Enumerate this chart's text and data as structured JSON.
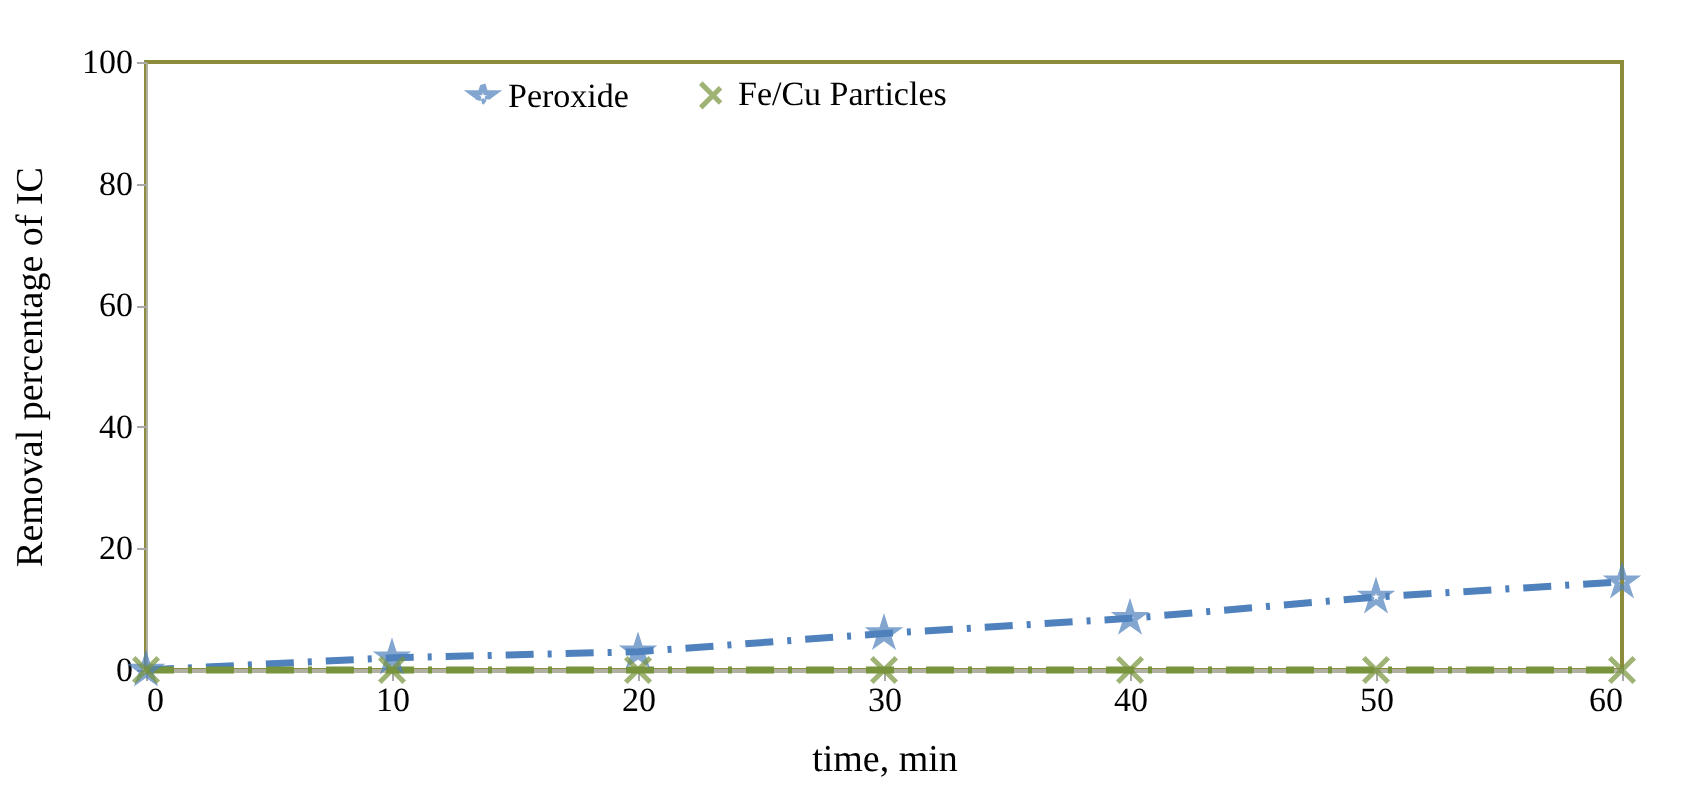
{
  "chart_data": {
    "type": "line",
    "xlabel": "time, min",
    "ylabel": "Removal percentage of IC",
    "x": [
      0,
      10,
      20,
      30,
      40,
      50,
      60
    ],
    "series": [
      {
        "name": "Peroxide",
        "color": "#4f81bd",
        "values": [
          0,
          2,
          3,
          6,
          8.5,
          12,
          14.5
        ],
        "marker": "star",
        "line_style": "dashed"
      },
      {
        "name": "Fe/Cu Particles",
        "color": "#77933c",
        "values": [
          0,
          0,
          0,
          0,
          0,
          0,
          0
        ],
        "marker": "cross",
        "line_style": "dashed"
      }
    ],
    "xlim": [
      0,
      60
    ],
    "xticks": [
      0,
      10,
      20,
      30,
      40,
      50,
      60
    ],
    "ylim": [
      0,
      100
    ],
    "yticks": [
      0,
      20,
      40,
      60,
      80,
      100
    ],
    "grid": false,
    "legend": "top"
  }
}
